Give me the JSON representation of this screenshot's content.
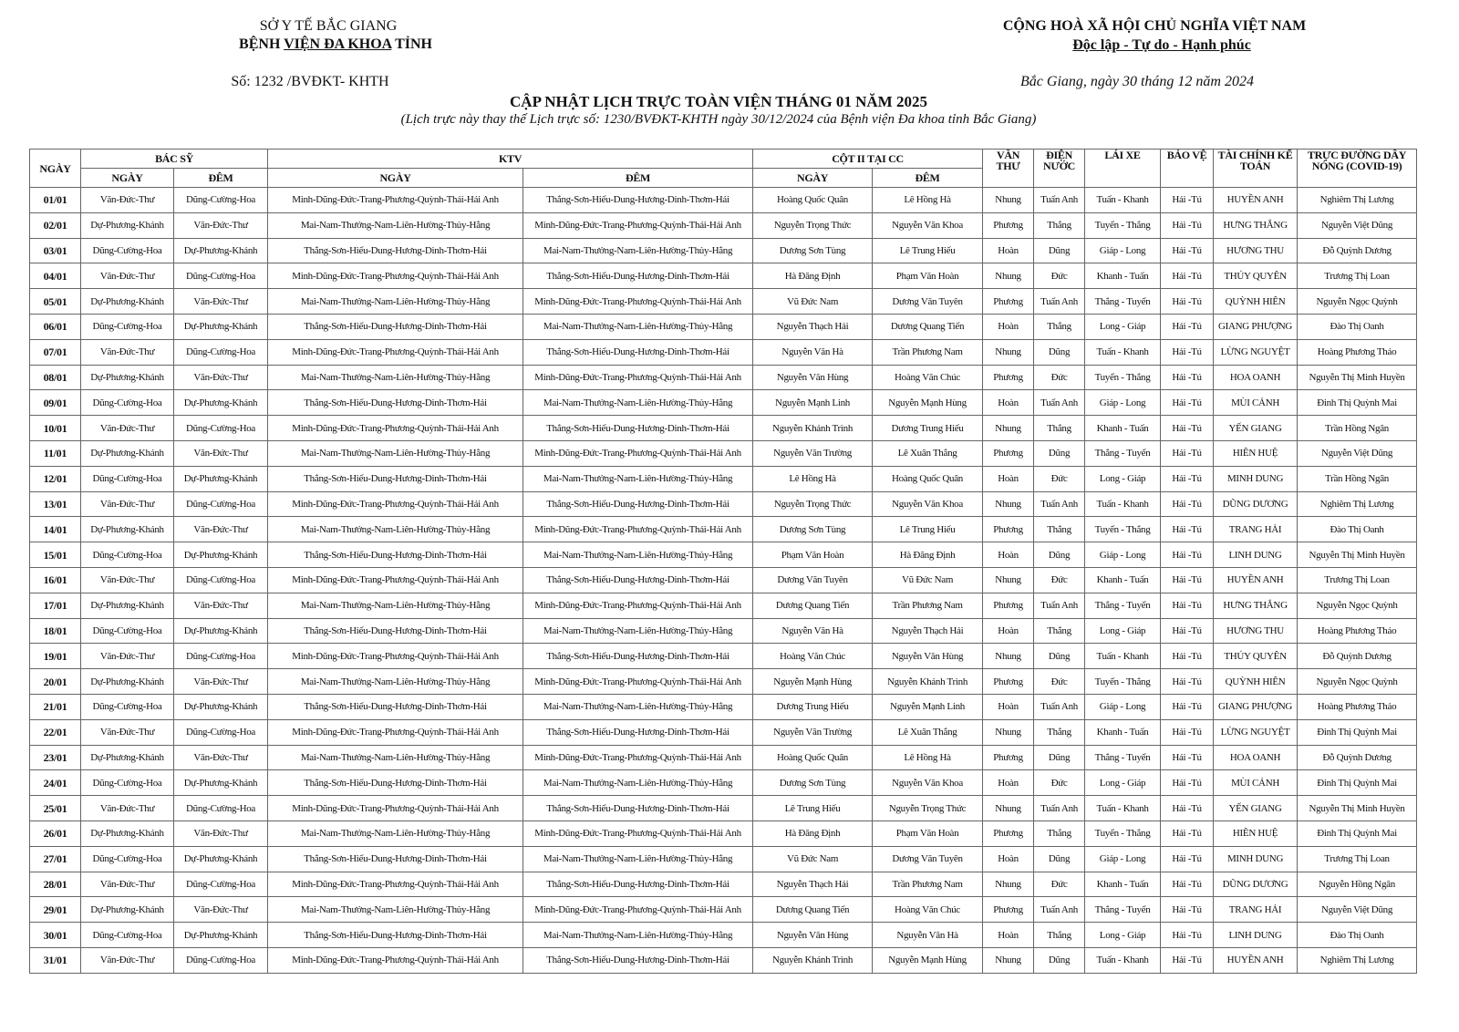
{
  "header": {
    "left_line1": "SỞ Y TẾ BẮC GIANG",
    "left_line2_pre": "BỆNH ",
    "left_line2_ul": "VIỆN ĐA KHOA",
    "left_line2_post": " TỈNH",
    "doc_number": "Số: 1232 /BVĐKT- KHTH",
    "right_line1": "CỘNG HOÀ XÃ HỘI CHỦ NGHĨA VIỆT NAM",
    "right_line2": "Độc lập - Tự do - Hạnh phúc",
    "place_date": "Bắc Giang, ngày 30 tháng 12  năm 2024",
    "title": "CẬP NHẬT LỊCH TRỰC TOÀN VIỆN THÁNG 01 NĂM 2025",
    "subtitle": "(Lịch trực này thay thế Lịch trực số: 1230/BVĐKT-KHTH ngày 30/12/2024 của Bệnh viện Đa khoa tỉnh Bắc Giang)"
  },
  "table": {
    "headers": {
      "ngay": "NGÀY",
      "bac_sy": "BÁC SỸ",
      "ktv": "KTV",
      "cot2": "CỘT II TẠI CC",
      "sub_ngay": "NGÀY",
      "sub_dem": "ĐÊM",
      "van_thu": "VĂN THƯ",
      "dien_nuoc": "ĐIỆN NƯỚC",
      "lai_xe": "LÁI XE",
      "bao_ve": "BẢO VỆ",
      "tckt": "TÀI CHÍNH KẾ TOÁN",
      "truc_duong_day": "TRỰC ĐƯỜNG DÂY NÓNG (COVID-19)"
    },
    "rows": [
      [
        "01/01",
        "Văn-Đức-Thư",
        "Dũng-Cường-Hoa",
        "Minh-Dũng-Đức-Trang-Phương-Quỳnh-Thái-Hải Anh",
        "Thắng-Sơn-Hiếu-Dung-Hương-Dinh-Thơm-Hải",
        "Hoàng Quốc Quân",
        "Lê Hồng Hà",
        "Nhung",
        "Tuấn Anh",
        "Tuấn - Khanh",
        "Hải -Tú",
        "HUYỀN ANH",
        "Nghiêm Thị Lương"
      ],
      [
        "02/01",
        "Dự-Phương-Khánh",
        "Văn-Đức-Thư",
        "Mai-Nam-Thưởng-Nam-Liên-Hường-Thủy-Hằng",
        "Minh-Dũng-Đức-Trang-Phương-Quỳnh-Thái-Hải Anh",
        "Nguyễn Trọng Thức",
        "Nguyễn Văn Khoa",
        "Phương",
        "Thắng",
        "Tuyển - Thắng",
        "Hải -Tú",
        "HƯNG THẮNG",
        "Nguyễn Việt Dũng"
      ],
      [
        "03/01",
        "Dũng-Cường-Hoa",
        "Dự-Phương-Khánh",
        "Thắng-Sơn-Hiếu-Dung-Hương-Dinh-Thơm-Hải",
        "Mai-Nam-Thưởng-Nam-Liên-Hường-Thủy-Hằng",
        "Dương Sơn Tùng",
        "Lê Trung Hiếu",
        "Hoàn",
        "Dũng",
        "Giáp - Long",
        "Hải -Tú",
        "HƯƠNG  THU",
        "Đỗ Quỳnh Dương"
      ],
      [
        "04/01",
        "Văn-Đức-Thư",
        "Dũng-Cường-Hoa",
        "Minh-Dũng-Đức-Trang-Phương-Quỳnh-Thái-Hải Anh",
        "Thắng-Sơn-Hiếu-Dung-Hương-Dinh-Thơm-Hải",
        "Hà Đăng Định",
        "Phạm Văn Hoàn",
        "Nhung",
        "Đức",
        "Khanh - Tuấn",
        "Hải -Tú",
        "THÚY QUYÊN",
        "Trương Thị Loan"
      ],
      [
        "05/01",
        "Dự-Phương-Khánh",
        "Văn-Đức-Thư",
        "Mai-Nam-Thưởng-Nam-Liên-Hường-Thủy-Hằng",
        "Minh-Dũng-Đức-Trang-Phương-Quỳnh-Thái-Hải Anh",
        "Vũ Đức Nam",
        "Dương Văn Tuyên",
        "Phương",
        "Tuấn Anh",
        "Thắng - Tuyển",
        "Hải -Tú",
        "QUỲNH HIÊN",
        "Nguyễn Ngọc Quỳnh"
      ],
      [
        "06/01",
        "Dũng-Cường-Hoa",
        "Dự-Phương-Khánh",
        "Thắng-Sơn-Hiếu-Dung-Hương-Dinh-Thơm-Hải",
        "Mai-Nam-Thưởng-Nam-Liên-Hường-Thủy-Hằng",
        "Nguyễn Thạch Hải",
        "Dương Quang Tiến",
        "Hoàn",
        "Thắng",
        "Long - Giáp",
        "Hải -Tú",
        "GIANG PHƯỢNG",
        "Đào Thị Oanh"
      ],
      [
        "07/01",
        "Văn-Đức-Thư",
        "Dũng-Cường-Hoa",
        "Minh-Dũng-Đức-Trang-Phương-Quỳnh-Thái-Hải Anh",
        "Thắng-Sơn-Hiếu-Dung-Hương-Dinh-Thơm-Hải",
        "Nguyễn Văn Hà",
        "Trần Phương Nam",
        "Nhung",
        "Dũng",
        "Tuấn - Khanh",
        "Hải -Tú",
        "LỪNG NGUYỆT",
        "Hoàng Phương Thảo"
      ],
      [
        "08/01",
        "Dự-Phương-Khánh",
        "Văn-Đức-Thư",
        "Mai-Nam-Thưởng-Nam-Liên-Hường-Thủy-Hằng",
        "Minh-Dũng-Đức-Trang-Phương-Quỳnh-Thái-Hải Anh",
        "Nguyễn Văn Hùng",
        "Hoàng Văn Chúc",
        "Phương",
        "Đức",
        "Tuyển - Thắng",
        "Hải -Tú",
        "HOA OANH",
        "Nguyễn Thị Minh Huyền"
      ],
      [
        "09/01",
        "Dũng-Cường-Hoa",
        "Dự-Phương-Khánh",
        "Thắng-Sơn-Hiếu-Dung-Hương-Dinh-Thơm-Hải",
        "Mai-Nam-Thưởng-Nam-Liên-Hường-Thủy-Hằng",
        "Nguyễn Mạnh Linh",
        "Nguyễn Mạnh Hùng",
        "Hoàn",
        "Tuấn Anh",
        "Giáp - Long",
        "Hải -Tú",
        "MÙI CẢNH",
        "Đinh Thị Quỳnh Mai"
      ],
      [
        "10/01",
        "Văn-Đức-Thư",
        "Dũng-Cường-Hoa",
        "Minh-Dũng-Đức-Trang-Phương-Quỳnh-Thái-Hải Anh",
        "Thắng-Sơn-Hiếu-Dung-Hương-Dinh-Thơm-Hải",
        "Nguyễn Khánh Trình",
        "Dương Trung Hiếu",
        "Nhung",
        "Thắng",
        "Khanh - Tuấn",
        "Hải -Tú",
        "YẾN GIANG",
        "Trần Hồng Ngân"
      ],
      [
        "11/01",
        "Dự-Phương-Khánh",
        "Văn-Đức-Thư",
        "Mai-Nam-Thưởng-Nam-Liên-Hường-Thủy-Hằng",
        "Minh-Dũng-Đức-Trang-Phương-Quỳnh-Thái-Hải Anh",
        "Nguyễn Văn Trường",
        "Lê Xuân Thắng",
        "Phương",
        "Dũng",
        "Thắng - Tuyển",
        "Hải -Tú",
        "HIÊN HUỆ",
        "Nguyễn Việt Dũng"
      ],
      [
        "12/01",
        "Dũng-Cường-Hoa",
        "Dự-Phương-Khánh",
        "Thắng-Sơn-Hiếu-Dung-Hương-Dinh-Thơm-Hải",
        "Mai-Nam-Thưởng-Nam-Liên-Hường-Thủy-Hằng",
        "Lê Hồng Hà",
        "Hoàng Quốc Quân",
        "Hoàn",
        "Đức",
        "Long - Giáp",
        "Hải -Tú",
        "MINH DUNG",
        "Trần Hồng Ngân"
      ],
      [
        "13/01",
        "Văn-Đức-Thư",
        "Dũng-Cường-Hoa",
        "Minh-Dũng-Đức-Trang-Phương-Quỳnh-Thái-Hải Anh",
        "Thắng-Sơn-Hiếu-Dung-Hương-Dinh-Thơm-Hải",
        "Nguyễn Trọng Thức",
        "Nguyễn Văn Khoa",
        "Nhung",
        "Tuấn Anh",
        "Tuấn - Khanh",
        "Hải -Tú",
        "DŨNG DƯƠNG",
        "Nghiêm Thị Lương"
      ],
      [
        "14/01",
        "Dự-Phương-Khánh",
        "Văn-Đức-Thư",
        "Mai-Nam-Thưởng-Nam-Liên-Hường-Thủy-Hằng",
        "Minh-Dũng-Đức-Trang-Phương-Quỳnh-Thái-Hải Anh",
        "Dương Sơn Tùng",
        "Lê Trung Hiếu",
        "Phương",
        "Thắng",
        "Tuyển - Thắng",
        "Hải -Tú",
        "TRANG  HẢI",
        "Đào Thị Oanh"
      ],
      [
        "15/01",
        "Dũng-Cường-Hoa",
        "Dự-Phương-Khánh",
        "Thắng-Sơn-Hiếu-Dung-Hương-Dinh-Thơm-Hải",
        "Mai-Nam-Thưởng-Nam-Liên-Hường-Thủy-Hằng",
        "Phạm Văn Hoàn",
        "Hà Đăng Định",
        "Hoàn",
        "Dũng",
        "Giáp - Long",
        "Hải -Tú",
        "LINH DUNG",
        "Nguyễn Thị Minh Huyền"
      ],
      [
        "16/01",
        "Văn-Đức-Thư",
        "Dũng-Cường-Hoa",
        "Minh-Dũng-Đức-Trang-Phương-Quỳnh-Thái-Hải Anh",
        "Thắng-Sơn-Hiếu-Dung-Hương-Dinh-Thơm-Hải",
        "Dương Văn Tuyên",
        "Vũ Đức Nam",
        "Nhung",
        "Đức",
        "Khanh - Tuấn",
        "Hải -Tú",
        "HUYỀN ANH",
        "Trương Thị Loan"
      ],
      [
        "17/01",
        "Dự-Phương-Khánh",
        "Văn-Đức-Thư",
        "Mai-Nam-Thưởng-Nam-Liên-Hường-Thủy-Hằng",
        "Minh-Dũng-Đức-Trang-Phương-Quỳnh-Thái-Hải Anh",
        "Dương Quang Tiến",
        "Trần Phương Nam",
        "Phương",
        "Tuấn Anh",
        "Thắng - Tuyển",
        "Hải -Tú",
        "HƯNG THẮNG",
        "Nguyễn Ngọc Quỳnh"
      ],
      [
        "18/01",
        "Dũng-Cường-Hoa",
        "Dự-Phương-Khánh",
        "Thắng-Sơn-Hiếu-Dung-Hương-Dinh-Thơm-Hải",
        "Mai-Nam-Thưởng-Nam-Liên-Hường-Thủy-Hằng",
        "Nguyễn Văn Hà",
        "Nguyễn Thạch Hải",
        "Hoàn",
        "Thắng",
        "Long - Giáp",
        "Hải -Tú",
        "HƯƠNG  THU",
        "Hoàng Phương Thảo"
      ],
      [
        "19/01",
        "Văn-Đức-Thư",
        "Dũng-Cường-Hoa",
        "Minh-Dũng-Đức-Trang-Phương-Quỳnh-Thái-Hải Anh",
        "Thắng-Sơn-Hiếu-Dung-Hương-Dinh-Thơm-Hải",
        "Hoàng Văn Chúc",
        "Nguyễn Văn Hùng",
        "Nhung",
        "Dũng",
        "Tuấn - Khanh",
        "Hải -Tú",
        "THÚY QUYÊN",
        "Đỗ Quỳnh Dương"
      ],
      [
        "20/01",
        "Dự-Phương-Khánh",
        "Văn-Đức-Thư",
        "Mai-Nam-Thưởng-Nam-Liên-Hường-Thủy-Hằng",
        "Minh-Dũng-Đức-Trang-Phương-Quỳnh-Thái-Hải Anh",
        "Nguyễn Mạnh Hùng",
        "Nguyễn Khánh Trình",
        "Phương",
        "Đức",
        "Tuyển - Thắng",
        "Hải -Tú",
        "QUỲNH HIÊN",
        "Nguyễn Ngọc Quỳnh"
      ],
      [
        "21/01",
        "Dũng-Cường-Hoa",
        "Dự-Phương-Khánh",
        "Thắng-Sơn-Hiếu-Dung-Hương-Dinh-Thơm-Hải",
        "Mai-Nam-Thưởng-Nam-Liên-Hường-Thủy-Hằng",
        "Dương Trung Hiếu",
        "Nguyễn Mạnh Linh",
        "Hoàn",
        "Tuấn Anh",
        "Giáp - Long",
        "Hải -Tú",
        "GIANG PHƯỢNG",
        "Hoàng Phương Thảo"
      ],
      [
        "22/01",
        "Văn-Đức-Thư",
        "Dũng-Cường-Hoa",
        "Minh-Dũng-Đức-Trang-Phương-Quỳnh-Thái-Hải Anh",
        "Thắng-Sơn-Hiếu-Dung-Hương-Dinh-Thơm-Hải",
        "Nguyễn Văn Trường",
        "Lê Xuân Thắng",
        "Nhung",
        "Thắng",
        "Khanh - Tuấn",
        "Hải -Tú",
        "LỪNG NGUYỆT",
        "Đinh Thị Quỳnh Mai"
      ],
      [
        "23/01",
        "Dự-Phương-Khánh",
        "Văn-Đức-Thư",
        "Mai-Nam-Thưởng-Nam-Liên-Hường-Thủy-Hằng",
        "Minh-Dũng-Đức-Trang-Phương-Quỳnh-Thái-Hải Anh",
        "Hoàng Quốc Quân",
        "Lê Hồng Hà",
        "Phương",
        "Dũng",
        "Thắng - Tuyển",
        "Hải -Tú",
        "HOA OANH",
        "Đỗ Quỳnh Dương"
      ],
      [
        "24/01",
        "Dũng-Cường-Hoa",
        "Dự-Phương-Khánh",
        "Thắng-Sơn-Hiếu-Dung-Hương-Dinh-Thơm-Hải",
        "Mai-Nam-Thưởng-Nam-Liên-Hường-Thủy-Hằng",
        "Dương Sơn Tùng",
        "Nguyễn Văn Khoa",
        "Hoàn",
        "Đức",
        "Long - Giáp",
        "Hải -Tú",
        "MÙI CẢNH",
        "Đinh Thị Quỳnh Mai"
      ],
      [
        "25/01",
        "Văn-Đức-Thư",
        "Dũng-Cường-Hoa",
        "Minh-Dũng-Đức-Trang-Phương-Quỳnh-Thái-Hải Anh",
        "Thắng-Sơn-Hiếu-Dung-Hương-Dinh-Thơm-Hải",
        "Lê Trung Hiếu",
        "Nguyễn Trọng Thức",
        "Nhung",
        "Tuấn Anh",
        "Tuấn - Khanh",
        "Hải -Tú",
        "YẾN GIANG",
        "Nguyễn Thị Minh Huyền"
      ],
      [
        "26/01",
        "Dự-Phương-Khánh",
        "Văn-Đức-Thư",
        "Mai-Nam-Thưởng-Nam-Liên-Hường-Thủy-Hằng",
        "Minh-Dũng-Đức-Trang-Phương-Quỳnh-Thái-Hải Anh",
        "Hà Đăng Định",
        "Phạm Văn Hoàn",
        "Phương",
        "Thắng",
        "Tuyển - Thắng",
        "Hải -Tú",
        "HIÊN HUỆ",
        "Đinh Thị Quỳnh Mai"
      ],
      [
        "27/01",
        "Dũng-Cường-Hoa",
        "Dự-Phương-Khánh",
        "Thắng-Sơn-Hiếu-Dung-Hương-Dinh-Thơm-Hải",
        "Mai-Nam-Thưởng-Nam-Liên-Hường-Thủy-Hằng",
        "Vũ Đức Nam",
        "Dương Văn Tuyên",
        "Hoàn",
        "Dũng",
        "Giáp - Long",
        "Hải -Tú",
        "MINH DUNG",
        "Trương Thị Loan"
      ],
      [
        "28/01",
        "Văn-Đức-Thư",
        "Dũng-Cường-Hoa",
        "Minh-Dũng-Đức-Trang-Phương-Quỳnh-Thái-Hải Anh",
        "Thắng-Sơn-Hiếu-Dung-Hương-Dinh-Thơm-Hải",
        "Nguyễn Thạch Hải",
        "Trần Phương Nam",
        "Nhung",
        "Đức",
        "Khanh - Tuấn",
        "Hải -Tú",
        "DŨNG DƯƠNG",
        "Nguyễn Hồng Ngân"
      ],
      [
        "29/01",
        "Dự-Phương-Khánh",
        "Văn-Đức-Thư",
        "Mai-Nam-Thưởng-Nam-Liên-Hường-Thủy-Hằng",
        "Minh-Dũng-Đức-Trang-Phương-Quỳnh-Thái-Hải Anh",
        "Dương Quang Tiến",
        "Hoàng Văn Chúc",
        "Phương",
        "Tuấn Anh",
        "Thắng - Tuyển",
        "Hải -Tú",
        "TRANG HẢI",
        "Nguyễn Việt Dũng"
      ],
      [
        "30/01",
        "Dũng-Cường-Hoa",
        "Dự-Phương-Khánh",
        "Thắng-Sơn-Hiếu-Dung-Hương-Dinh-Thơm-Hải",
        "Mai-Nam-Thưởng-Nam-Liên-Hường-Thủy-Hằng",
        "Nguyễn Văn Hùng",
        "Nguyễn Văn Hà",
        "Hoàn",
        "Thắng",
        "Long - Giáp",
        "Hải -Tú",
        "LINH DUNG",
        "Đào Thị Oanh"
      ],
      [
        "31/01",
        "Văn-Đức-Thư",
        "Dũng-Cường-Hoa",
        "Minh-Dũng-Đức-Trang-Phương-Quỳnh-Thái-Hải Anh",
        "Thắng-Sơn-Hiếu-Dung-Hương-Dinh-Thơm-Hải",
        "Nguyễn Khánh Trình",
        "Nguyễn Mạnh Hùng",
        "Nhung",
        "Dũng",
        "Tuấn - Khanh",
        "Hải -Tú",
        "HUYỀN ANH",
        "Nghiêm Thị Lương"
      ]
    ]
  }
}
